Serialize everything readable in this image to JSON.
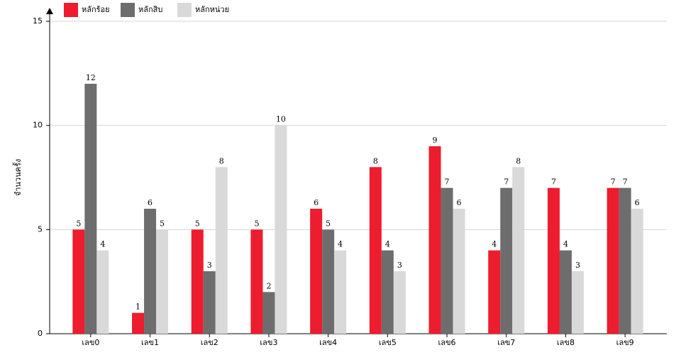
{
  "chart_data": {
    "type": "bar",
    "y_label": "จำนวนครั้ง",
    "categories": [
      "เลข0",
      "เลข1",
      "เลข2",
      "เลข3",
      "เลข4",
      "เลข5",
      "เลข6",
      "เลข7",
      "เลข8",
      "เลข9"
    ],
    "series": [
      {
        "name": "หลักร้อย",
        "color": "#ed1c2e",
        "values": [
          5,
          1,
          5,
          5,
          6,
          8,
          9,
          4,
          7,
          7
        ]
      },
      {
        "name": "หลักสิบ",
        "color": "#6d6d6d",
        "values": [
          12,
          6,
          3,
          2,
          5,
          4,
          7,
          7,
          4,
          7
        ]
      },
      {
        "name": "หลักหน่วย",
        "color": "#d9d9d9",
        "values": [
          4,
          5,
          8,
          10,
          4,
          3,
          6,
          8,
          3,
          6
        ]
      }
    ],
    "ylim": [
      0,
      15
    ],
    "yticks": [
      0,
      5,
      10,
      15
    ],
    "grid": true,
    "legend": "top-left"
  }
}
